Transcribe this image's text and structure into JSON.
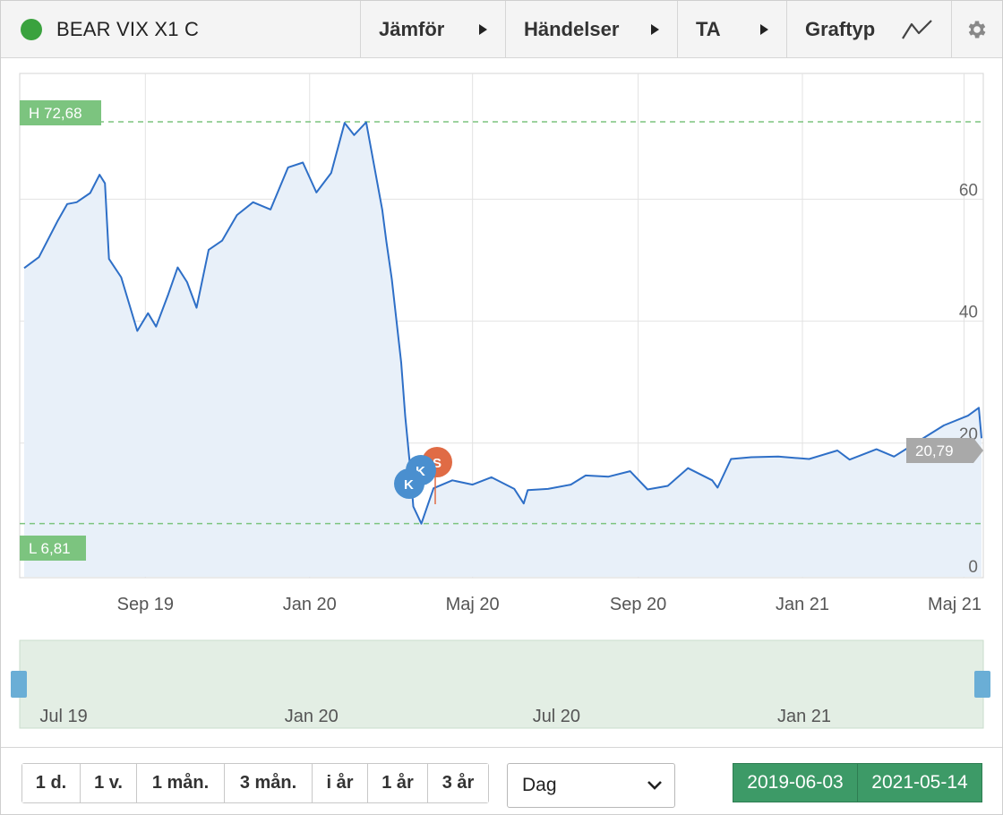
{
  "instrument": {
    "name": "BEAR VIX X1 C",
    "status_color": "#3aa23e"
  },
  "toolbar": {
    "compare_label": "Jämför",
    "events_label": "Händelser",
    "ta_label": "TA",
    "graphtype_label": "Graftyp",
    "graphtype_icon": "line-chart-icon",
    "settings_icon": "gear-icon"
  },
  "chart": {
    "high_label": "H 72,68",
    "low_label": "L 6,81",
    "last_value_label": "20,79",
    "y_tick_labels": [
      "0",
      "20",
      "40",
      "60"
    ],
    "x_tick_labels": [
      "Sep 19",
      "Jan 20",
      "Maj 20",
      "Sep 20",
      "Jan 21",
      "Maj 21"
    ],
    "navigator_tick_labels": [
      "Jul 19",
      "Jan 20",
      "Jul 20",
      "Jan 21"
    ],
    "markers": [
      {
        "letter": "K",
        "color": "#4a8fcf"
      },
      {
        "letter": "K",
        "color": "#4a8fcf"
      },
      {
        "letter": "S",
        "color": "#e06b45"
      }
    ],
    "line_color": "#2e6fc7",
    "area_color": "#e8f0f9",
    "hl_color": "#7cc47f"
  },
  "chart_data": {
    "type": "line",
    "title": "",
    "xlabel": "",
    "ylabel": "",
    "ylim": [
      0,
      72.68
    ],
    "high": 72.68,
    "low": 6.81,
    "last": 20.79,
    "date_range": [
      "2019-06-03",
      "2021-05-14"
    ],
    "series": [
      {
        "x": [
          "2019-06-03",
          "2019-06-14",
          "2019-06-28",
          "2019-07-05",
          "2019-07-12",
          "2019-07-22",
          "2019-07-29",
          "2019-08-02",
          "2019-08-05",
          "2019-08-14",
          "2019-08-26",
          "2019-09-03",
          "2019-09-09",
          "2019-09-18",
          "2019-09-25",
          "2019-10-02",
          "2019-10-09",
          "2019-10-18",
          "2019-10-28",
          "2019-11-08",
          "2019-11-20",
          "2019-12-03",
          "2019-12-16",
          "2019-12-27",
          "2020-01-06",
          "2020-01-17",
          "2020-01-27",
          "2020-02-03",
          "2020-02-12",
          "2020-02-24",
          "2020-02-27",
          "2020-03-02",
          "2020-03-09",
          "2020-03-12",
          "2020-03-16",
          "2020-03-18",
          "2020-03-24",
          "2020-04-02",
          "2020-04-16",
          "2020-05-01",
          "2020-05-15",
          "2020-06-01",
          "2020-06-08",
          "2020-06-11",
          "2020-06-26",
          "2020-07-13",
          "2020-07-24",
          "2020-08-10",
          "2020-08-26",
          "2020-09-08",
          "2020-09-23",
          "2020-10-08",
          "2020-10-26",
          "2020-10-30",
          "2020-11-09",
          "2020-11-24",
          "2020-12-14",
          "2021-01-06",
          "2021-01-27",
          "2021-02-05",
          "2021-02-25",
          "2021-03-10",
          "2021-03-31",
          "2021-04-16",
          "2021-05-04",
          "2021-05-12",
          "2021-05-14"
        ],
        "values": [
          48.7,
          50.5,
          56.5,
          59.2,
          59.5,
          61.0,
          64.0,
          62.6,
          50.2,
          47.2,
          38.4,
          41.3,
          39.1,
          44.4,
          48.8,
          46.4,
          42.2,
          51.7,
          53.2,
          57.4,
          59.5,
          58.3,
          65.2,
          66.0,
          61.1,
          64.3,
          72.5,
          70.5,
          72.6,
          58.2,
          53.1,
          46.9,
          33.2,
          24.4,
          15.3,
          9.6,
          6.8,
          12.6,
          13.9,
          13.2,
          14.4,
          12.5,
          10.1,
          12.3,
          12.5,
          13.2,
          14.7,
          14.5,
          15.4,
          12.4,
          13.0,
          15.9,
          13.9,
          12.7,
          17.4,
          17.7,
          17.8,
          17.4,
          18.8,
          17.3,
          19.0,
          17.8,
          20.7,
          22.9,
          24.5,
          25.8,
          20.8
        ]
      }
    ]
  },
  "period_buttons": [
    "1 d.",
    "1 v.",
    "1 mån.",
    "3 mån.",
    "i år",
    "1 år",
    "3 år"
  ],
  "interval": {
    "selected": "Dag"
  },
  "date_range": {
    "from": "2019-06-03",
    "to": "2021-05-14"
  }
}
